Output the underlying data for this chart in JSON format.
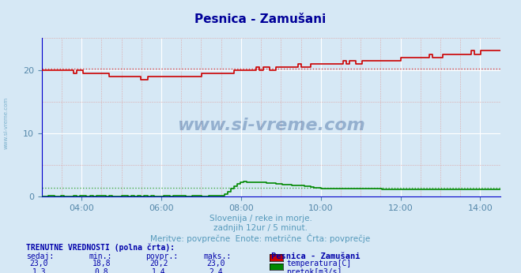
{
  "title": "Pesnica - Zamušani",
  "title_color": "#000099",
  "bg_color": "#d6e8f5",
  "plot_bg_color": "#d6e8f5",
  "grid_color_major": "#ffffff",
  "grid_color_minor": "#ddaaaa",
  "xlabel_color": "#5588aa",
  "ylabel_color": "#5588aa",
  "watermark": "www.si-vreme.com",
  "subtitle1": "Slovenija / reke in morje.",
  "subtitle2": "zadnjih 12ur / 5 minut.",
  "subtitle3": "Meritve: povprečne  Enote: metrične  Črta: povprečje",
  "subtitle_color": "#5599bb",
  "footnote_title": "TRENUTNE VREDNOSTI (polna črta):",
  "footnote_color": "#0000aa",
  "col_headers": [
    "sedaj:",
    "min.:",
    "povpr.:",
    "maks.:"
  ],
  "legend_title": "Pesnica - Zamušani",
  "series": [
    {
      "label": "temperatura[C]",
      "color": "#cc0000",
      "dotted_color": "#dd4444",
      "sedaj": "23,0",
      "min": "18,8",
      "povpr": "20,2",
      "maks": "23,0"
    },
    {
      "label": "pretok[m3/s]",
      "color": "#008800",
      "dotted_color": "#44aa44",
      "sedaj": "1,3",
      "min": "0,8",
      "povpr": "1,4",
      "maks": "2,4"
    }
  ],
  "xmin": 3.0,
  "xmax": 14.5,
  "xticks": [
    4,
    6,
    8,
    10,
    12,
    14
  ],
  "xlabels": [
    "04:00",
    "06:00",
    "08:00",
    "10:00",
    "12:00",
    "14:00"
  ],
  "ylim_temp": [
    0,
    25
  ],
  "yticks_temp": [
    0,
    10,
    20
  ],
  "temp_avg": 20.2,
  "flow_avg": 1.4,
  "axis_color": "#0000cc"
}
